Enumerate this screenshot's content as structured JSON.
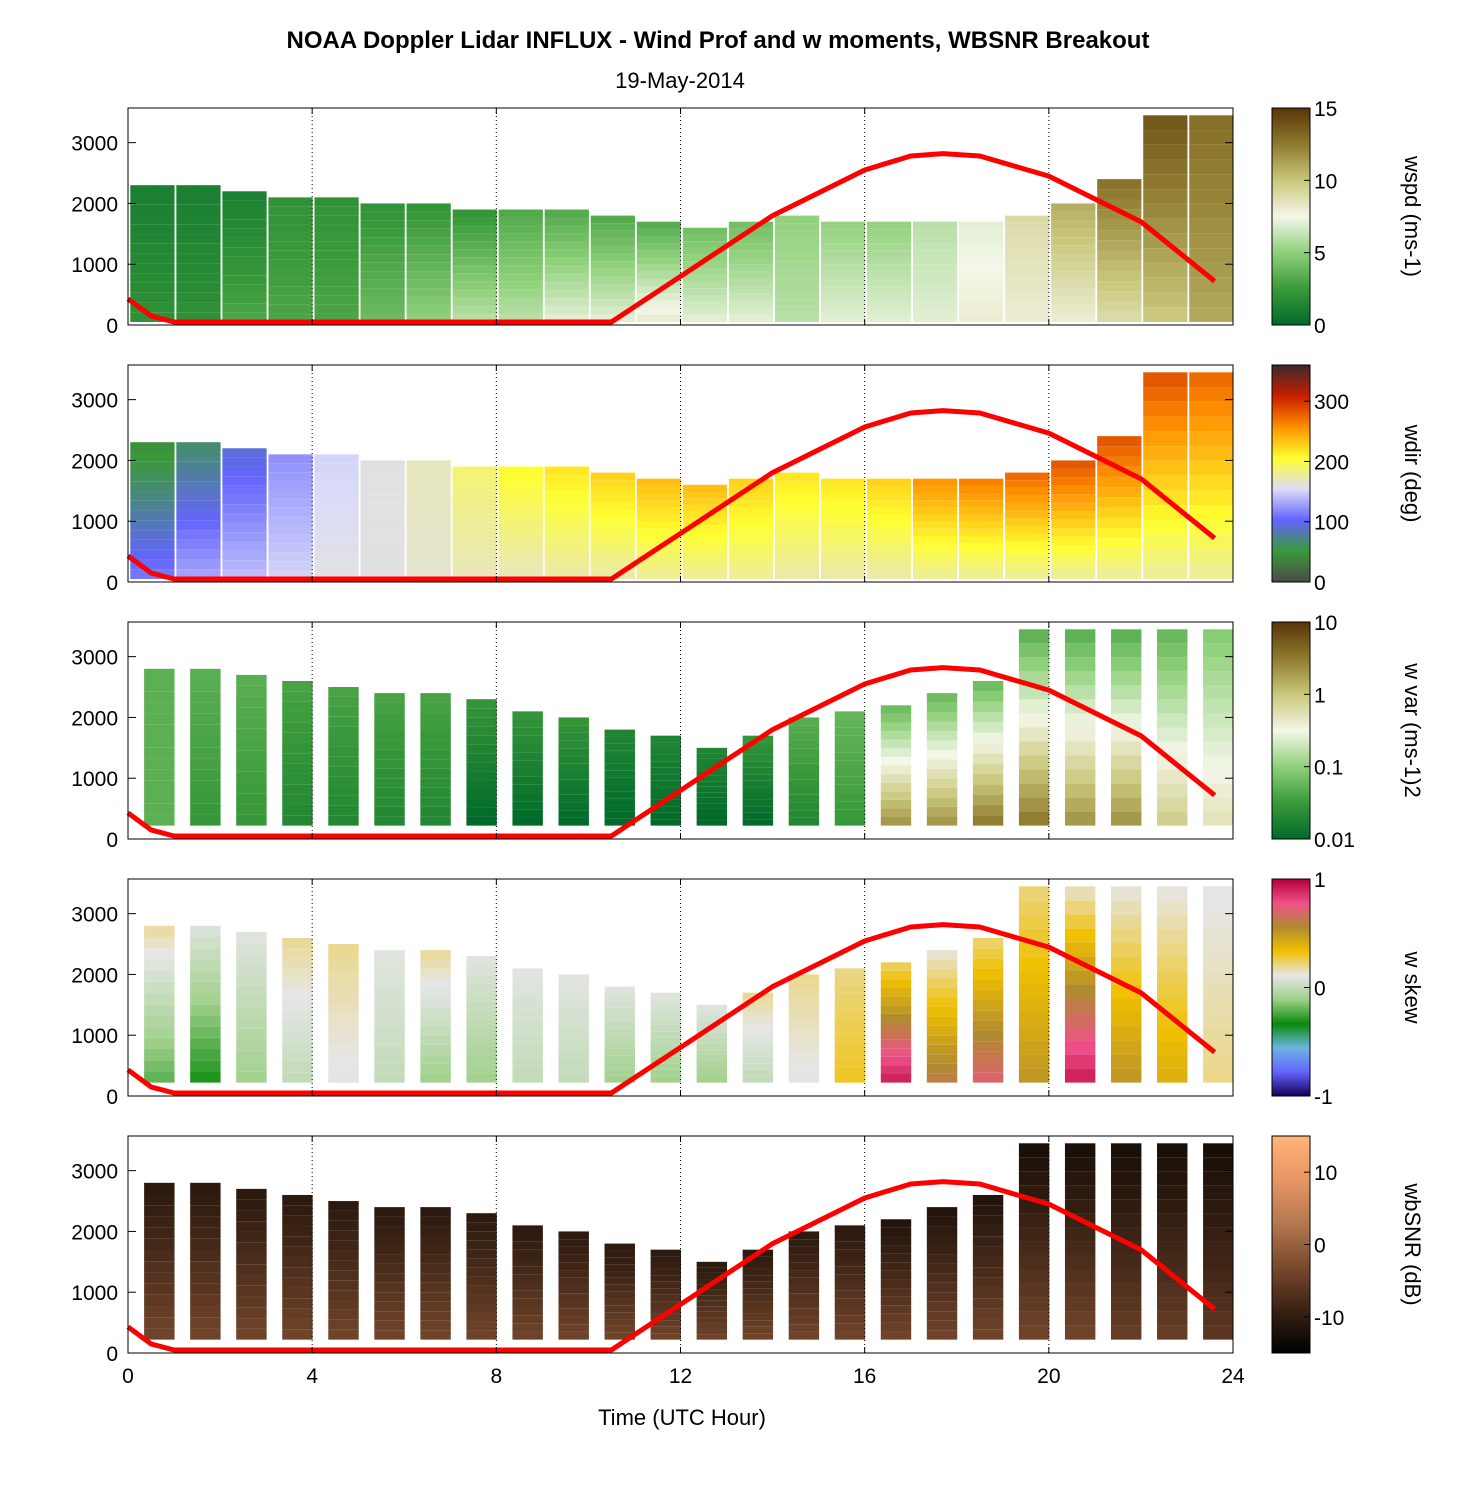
{
  "title": "NOAA Doppler Lidar INFLUX - Wind Prof and w moments, WBSNR Breakout",
  "date": "19-May-2014",
  "chart_data": {
    "type": "heatmap",
    "xlabel": "Time (UTC Hour)",
    "xlim": [
      0,
      24
    ],
    "xticks": [
      "0",
      "4",
      "8",
      "12",
      "16",
      "20",
      "24"
    ],
    "ylim": [
      0,
      3500
    ],
    "yticks": [
      "0",
      "1000",
      "2000",
      "3000"
    ],
    "grid": "vertical dotted lines at 4, 8, 12, 16, 20, 24",
    "line_color": "#ff0000",
    "line_series": {
      "x": [
        0,
        0.5,
        1,
        2,
        4,
        6,
        8,
        10,
        10.5,
        12,
        14,
        16,
        17,
        17.7,
        18.5,
        20,
        22,
        23.6
      ],
      "y": [
        430,
        150,
        50,
        50,
        50,
        50,
        50,
        50,
        50,
        800,
        1800,
        2550,
        2780,
        2820,
        2780,
        2450,
        1700,
        720
      ]
    },
    "panels": [
      {
        "name": "wspd",
        "colorbar_label": "wspd (ms-1)",
        "colorbar_ticks": [
          "0",
          "5",
          "10",
          "15"
        ],
        "colorbar_colors": [
          "#006a2a",
          "#3a9a3a",
          "#8fd07a",
          "#f4f6e8",
          "#c9c77a",
          "#8e7a2e",
          "#5a3408"
        ],
        "cell_top": [
          2300,
          2300,
          2200,
          2100,
          2100,
          2000,
          2000,
          1900,
          1900,
          1900,
          1800,
          1700,
          1600,
          1700,
          1800,
          1700,
          1700,
          1700,
          1700,
          1800,
          2000,
          2400,
          3500,
          3500
        ],
        "cell_bottom": 50,
        "low_level_value_by_hour": [
          2,
          2,
          3,
          3,
          3,
          4,
          5,
          6,
          6,
          7,
          7,
          8,
          7,
          7,
          6,
          7,
          7,
          7,
          8,
          8,
          8,
          9,
          10,
          11
        ],
        "upper_level_value_by_hour": [
          1,
          1,
          1,
          2,
          2,
          2,
          2,
          2,
          3,
          3,
          3,
          3,
          4,
          4,
          5,
          5,
          5,
          6,
          7,
          9,
          11,
          13,
          14,
          13
        ]
      },
      {
        "name": "wdir",
        "colorbar_label": "wdir (deg)",
        "colorbar_ticks": [
          "0",
          "100",
          "200",
          "300"
        ],
        "colorbar_colors": [
          "#4a4a4a",
          "#3a9a3a",
          "#6464ff",
          "#dcdcf8",
          "#ffff30",
          "#ff9000",
          "#c81e00",
          "#3a2a2a"
        ],
        "cell_top": [
          2300,
          2300,
          2200,
          2100,
          2100,
          2000,
          2000,
          1900,
          1900,
          1900,
          1800,
          1700,
          1600,
          1700,
          1800,
          1700,
          1700,
          1700,
          1700,
          1800,
          2000,
          2400,
          3500,
          3500
        ],
        "cell_bottom": 50,
        "low_level_value_by_hour": [
          110,
          130,
          140,
          150,
          160,
          160,
          165,
          170,
          170,
          175,
          175,
          180,
          180,
          180,
          175,
          175,
          175,
          180,
          180,
          180,
          180,
          180,
          180,
          180
        ],
        "upper_level_value_by_hour": [
          40,
          60,
          90,
          120,
          150,
          160,
          170,
          190,
          210,
          220,
          230,
          240,
          240,
          230,
          220,
          220,
          230,
          260,
          270,
          280,
          290,
          290,
          290,
          280
        ]
      },
      {
        "name": "w var",
        "colorbar_label": "w var (ms-1)2",
        "colorbar_ticks": [
          "0.01",
          "0.1",
          "1",
          "10"
        ],
        "colorbar_scale": "log",
        "colorbar_colors": [
          "#006a2a",
          "#3a9a3a",
          "#8fd07a",
          "#f4f6e8",
          "#c9c77a",
          "#8e7a2e",
          "#5a3408"
        ],
        "cell_top": [
          2800,
          2800,
          2700,
          2600,
          2500,
          2400,
          2400,
          2300,
          2100,
          2000,
          1800,
          1700,
          1500,
          1700,
          2000,
          2100,
          2200,
          2400,
          2600,
          3500,
          3500,
          3500,
          3500,
          3500
        ],
        "cell_bottom": 220,
        "low_level_value_by_hour": [
          0.05,
          0.03,
          0.03,
          0.02,
          0.02,
          0.02,
          0.02,
          0.01,
          0.01,
          0.01,
          0.01,
          0.01,
          0.01,
          0.01,
          0.02,
          0.03,
          2,
          2,
          3,
          3,
          2,
          2,
          0.8,
          0.5
        ],
        "upper_level_value_by_hour": [
          0.05,
          0.05,
          0.05,
          0.04,
          0.04,
          0.04,
          0.04,
          0.03,
          0.03,
          0.03,
          0.02,
          0.02,
          0.02,
          0.03,
          0.05,
          0.06,
          0.05,
          0.05,
          0.05,
          0.04,
          0.04,
          0.04,
          0.05,
          0.08
        ]
      },
      {
        "name": "w skew",
        "colorbar_label": "w skew",
        "colorbar_ticks": [
          "-1",
          "0",
          "1"
        ],
        "colorbar_colors": [
          "#14005a",
          "#6464ff",
          "#6cb4e0",
          "#0a8a0a",
          "#9fd08a",
          "#e6e6e6",
          "#f0c000",
          "#b08a30",
          "#f0508a",
          "#b4003a"
        ],
        "cell_top": [
          2800,
          2800,
          2700,
          2600,
          2500,
          2400,
          2400,
          2300,
          2100,
          2000,
          1800,
          1700,
          1500,
          1700,
          2000,
          2100,
          2200,
          2400,
          2600,
          3500,
          3500,
          3500,
          3500,
          3500
        ],
        "cell_bottom": 220,
        "low_level_value_by_hour": [
          -0.2,
          -0.3,
          -0.1,
          0,
          0.1,
          0,
          -0.1,
          -0.1,
          0,
          0,
          -0.1,
          -0.1,
          -0.1,
          0,
          0.1,
          0.3,
          0.9,
          0.6,
          0.7,
          0.5,
          0.9,
          0.5,
          0.4,
          0.2
        ],
        "upper_level_value_by_hour": [
          0.2,
          0.1,
          0.1,
          0.2,
          0.2,
          0.1,
          0.2,
          0.1,
          0.1,
          0.1,
          0.1,
          0.1,
          0.1,
          0.2,
          0.2,
          0.2,
          0.2,
          0.1,
          0.2,
          0.2,
          0.1,
          0.1,
          0.1,
          0.1
        ]
      },
      {
        "name": "wbSNR",
        "colorbar_label": "wbSNR (dB)",
        "colorbar_ticks": [
          "-10",
          "0",
          "10"
        ],
        "colorbar_colors": [
          "#000000",
          "#3a2214",
          "#7a4a2e",
          "#b47850",
          "#e89664",
          "#ffb478"
        ],
        "cell_top": [
          2800,
          2800,
          2700,
          2600,
          2500,
          2400,
          2400,
          2300,
          2100,
          2000,
          1800,
          1700,
          1500,
          1700,
          2000,
          2100,
          2200,
          2400,
          2600,
          3500,
          3500,
          3500,
          3500,
          3500
        ],
        "cell_bottom": 220,
        "low_level_value_by_hour": [
          -4,
          -4,
          -4,
          -4,
          -4,
          -4,
          -4,
          -4,
          -4,
          -4,
          -4,
          -4,
          -4,
          -4,
          -4,
          -4,
          -4,
          -4,
          -4,
          -4,
          -4,
          -5,
          -5,
          -6
        ],
        "upper_level_value_by_hour": [
          -11,
          -11,
          -11,
          -11,
          -11,
          -11,
          -11,
          -11,
          -11,
          -11,
          -11,
          -11,
          -11,
          -11,
          -11,
          -11,
          -12,
          -12,
          -12,
          -13,
          -13,
          -13,
          -13,
          -13
        ]
      }
    ]
  }
}
